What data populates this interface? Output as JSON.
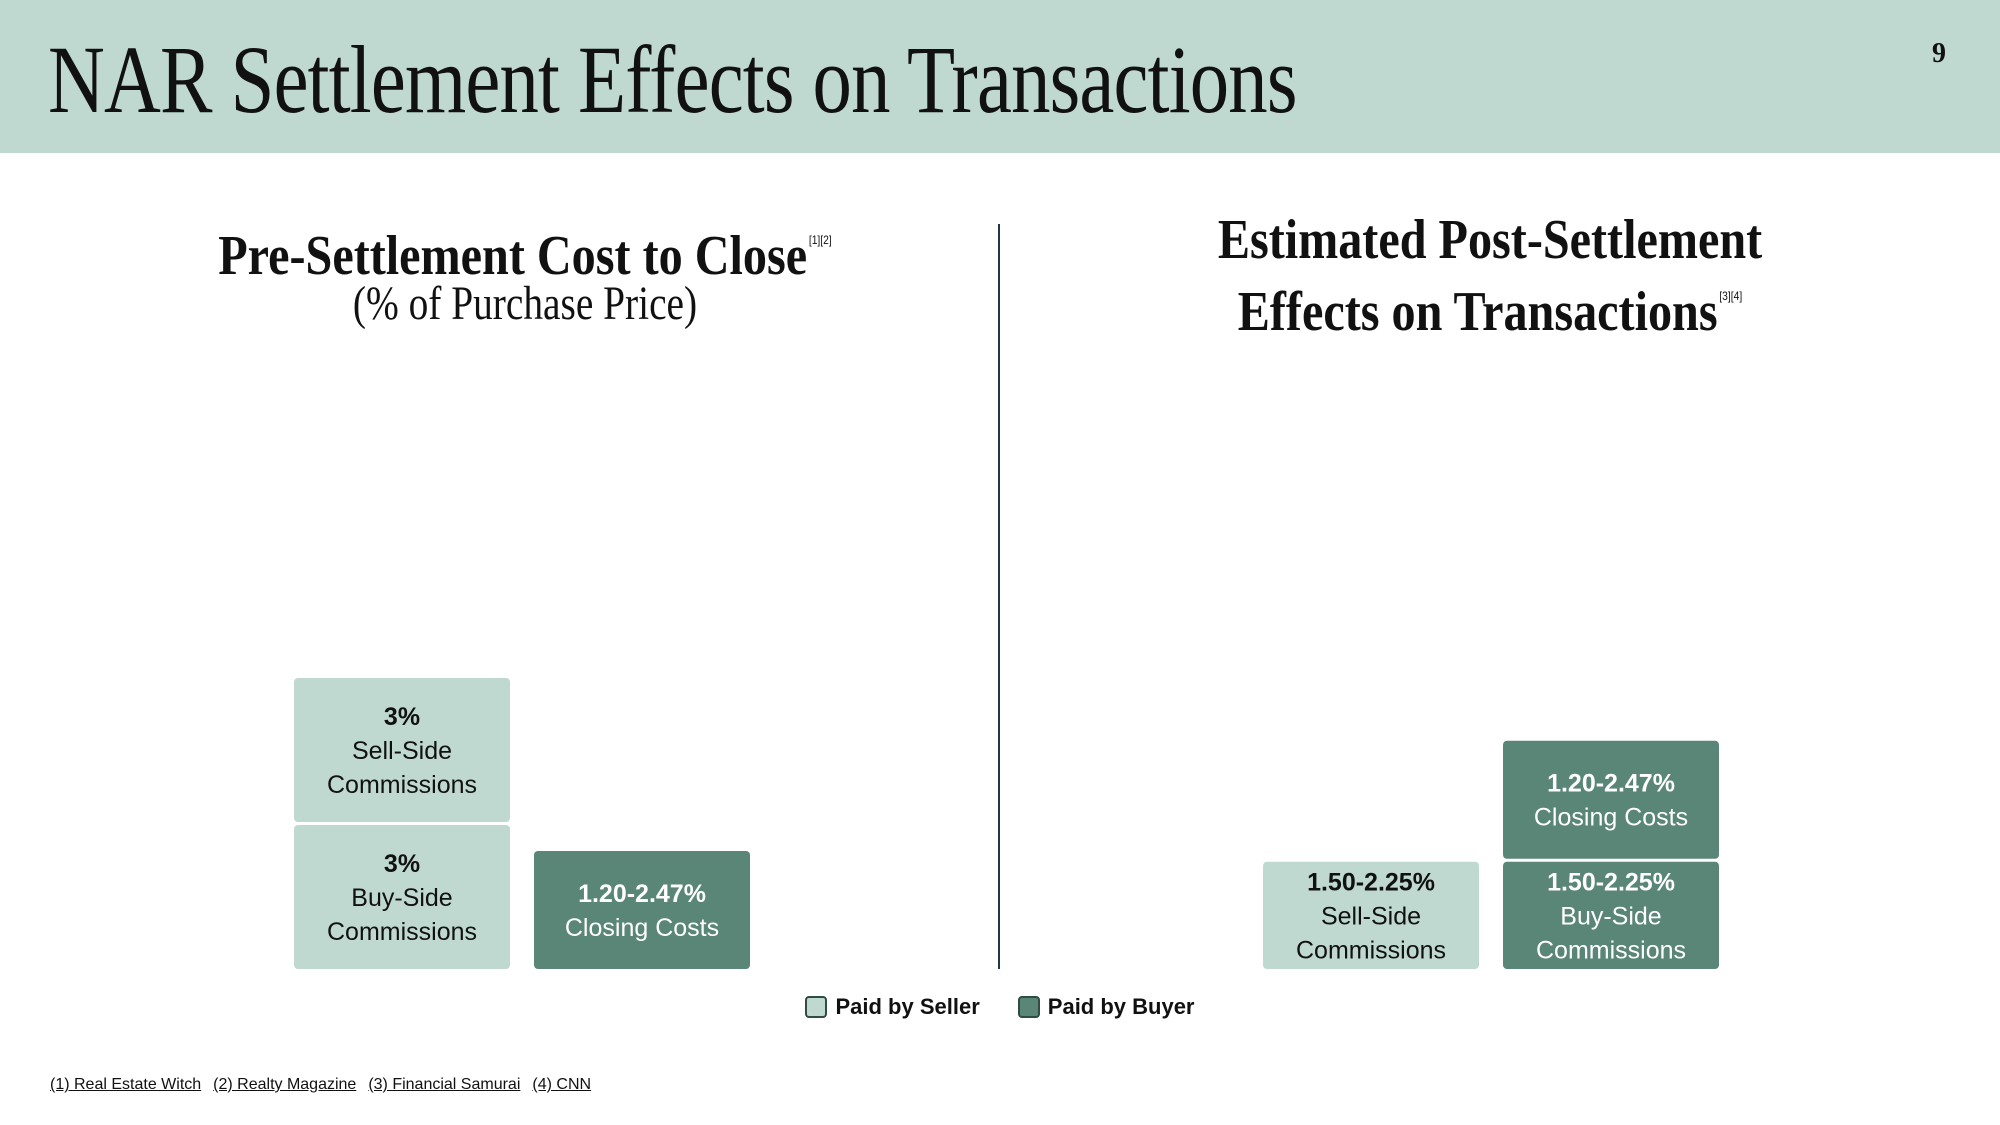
{
  "header": {
    "title": "NAR Settlement Effects on Transactions",
    "page_number": "9"
  },
  "left_panel": {
    "title": "Pre-Settlement Cost to Close",
    "title_refs": "[1][2]",
    "subtitle": "(% of Purchase Price)"
  },
  "right_panel": {
    "title_line1": "Estimated Post-Settlement",
    "title_line2": "Effects on Transactions",
    "title_refs": "[3][4]"
  },
  "colors": {
    "seller": "#bfd9d1",
    "buyer": "#5a8677",
    "header_bg": "#bfd9d1"
  },
  "legend": {
    "seller_label": "Paid by Seller",
    "buyer_label": "Paid by Buyer"
  },
  "footnotes": [
    "(1) Real Estate Witch",
    "(2) Realty Magazine",
    "(3) Financial Samurai",
    "(4) CNN"
  ],
  "chart_data": [
    {
      "type": "bar",
      "stacked": true,
      "title": "Pre-Settlement Cost to Close",
      "subtitle": "(% of Purchase Price)",
      "categories": [
        "Paid by Seller",
        "Paid by Buyer"
      ],
      "bars": [
        {
          "payer": "seller",
          "segments": [
            {
              "value": "3%",
              "label": "Buy-Side Commissions",
              "min": 3,
              "max": 3
            },
            {
              "value": "3%",
              "label": "Sell-Side Commissions",
              "min": 3,
              "max": 3
            }
          ]
        },
        {
          "payer": "buyer",
          "segments": [
            {
              "value": "1.20-2.47%",
              "label": "Closing Costs",
              "min": 1.2,
              "max": 2.47
            }
          ]
        }
      ]
    },
    {
      "type": "bar",
      "stacked": true,
      "title": "Estimated Post-Settlement Effects on Transactions",
      "categories": [
        "Paid by Seller",
        "Paid by Buyer"
      ],
      "bars": [
        {
          "payer": "seller",
          "segments": [
            {
              "value": "1.50-2.25%",
              "label": "Sell-Side Commissions",
              "min": 1.5,
              "max": 2.25
            }
          ]
        },
        {
          "payer": "buyer",
          "segments": [
            {
              "value": "1.50-2.25%",
              "label": "Buy-Side Commissions",
              "min": 1.5,
              "max": 2.25
            },
            {
              "value": "1.20-2.47%",
              "label": "Closing Costs",
              "min": 1.2,
              "max": 2.47
            }
          ]
        }
      ]
    }
  ]
}
